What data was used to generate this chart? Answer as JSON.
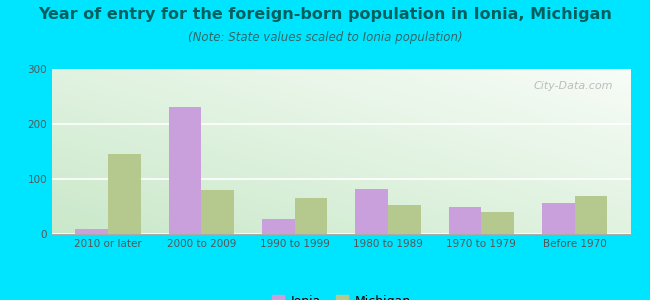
{
  "title": "Year of entry for the foreign-born population in Ionia, Michigan",
  "subtitle": "(Note: State values scaled to Ionia population)",
  "categories": [
    "2010 or later",
    "2000 to 2009",
    "1990 to 1999",
    "1980 to 1989",
    "1970 to 1979",
    "Before 1970"
  ],
  "ionia_values": [
    10,
    230,
    27,
    82,
    50,
    57
  ],
  "michigan_values": [
    145,
    80,
    65,
    52,
    40,
    70
  ],
  "ionia_color": "#c9a0dc",
  "michigan_color": "#b5c98e",
  "background_color": "#00e5ff",
  "ylim": [
    0,
    300
  ],
  "yticks": [
    0,
    100,
    200,
    300
  ],
  "bar_width": 0.35,
  "title_fontsize": 11.5,
  "subtitle_fontsize": 8.5,
  "legend_fontsize": 9,
  "tick_fontsize": 7.5,
  "title_color": "#006060",
  "subtitle_color": "#336666",
  "watermark_text": "City-Data.com"
}
